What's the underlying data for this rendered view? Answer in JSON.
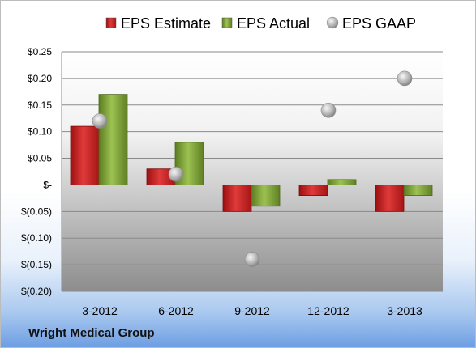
{
  "footer": {
    "company": "Wright Medical Group"
  },
  "chart_data": {
    "type": "bar",
    "categories": [
      "3-2012",
      "6-2012",
      "9-2012",
      "12-2012",
      "3-2013"
    ],
    "series": [
      {
        "name": "EPS Estimate",
        "kind": "bar",
        "color": "#cc2222",
        "values": [
          0.11,
          0.03,
          -0.05,
          -0.02,
          -0.05
        ]
      },
      {
        "name": "EPS Actual",
        "kind": "bar",
        "color": "#7ea03a",
        "values": [
          0.17,
          0.08,
          -0.04,
          0.01,
          -0.02
        ]
      },
      {
        "name": "EPS GAAP",
        "kind": "marker",
        "color": "#b5b5b5",
        "values": [
          0.12,
          0.02,
          -0.14,
          0.14,
          0.2
        ]
      }
    ],
    "ylim": [
      -0.2,
      0.25
    ],
    "yticks": [
      0.25,
      0.2,
      0.15,
      0.1,
      0.05,
      0,
      -0.05,
      -0.1,
      -0.15,
      -0.2
    ],
    "ytick_labels": [
      "$0.25",
      "$0.20",
      "$0.15",
      "$0.10",
      "$0.05",
      "$-",
      "$(0.05)",
      "$(0.10)",
      "$(0.15)",
      "$(0.20)"
    ],
    "grid": true,
    "legend_position": "top"
  }
}
